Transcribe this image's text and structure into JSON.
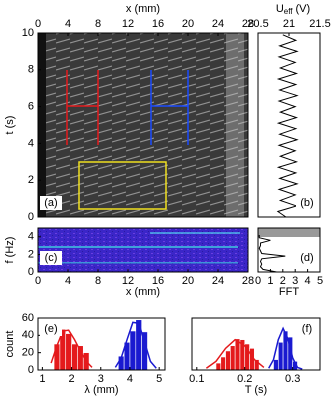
{
  "chart_data": [
    {
      "type": "image",
      "label": "(a)",
      "xlabel": "x (mm)",
      "ylabel": "t (s)",
      "xlim": [
        0,
        28
      ],
      "xticks": [
        0,
        4,
        8,
        12,
        16,
        20,
        24,
        28
      ],
      "ylim": [
        0,
        10
      ],
      "yticks": [
        0,
        2,
        4,
        6,
        8,
        10
      ]
    },
    {
      "type": "line",
      "label": "(b)",
      "xlabel": "U",
      "xlabel_sub": "eff",
      "xlabel_unit": "(V)",
      "color": "#000000",
      "xlim": [
        20.5,
        21.5
      ],
      "xticks": [
        20.5,
        21,
        21.5
      ],
      "ylim": [
        0,
        10
      ],
      "y": [
        0,
        0.3,
        0.6,
        0.9,
        1.2,
        1.5,
        1.8,
        2.1,
        2.4,
        2.7,
        3.0,
        3.3,
        3.6,
        3.9,
        4.2,
        4.5,
        4.8,
        5.1,
        5.4,
        5.7,
        6.0,
        6.3,
        6.6,
        6.9,
        7.2,
        7.5,
        7.8,
        8.1,
        8.4,
        8.7,
        9.0,
        9.3,
        9.6,
        9.9
      ],
      "values": [
        20.95,
        20.82,
        21.12,
        20.86,
        21.1,
        20.84,
        21.13,
        20.85,
        21.11,
        20.83,
        21.12,
        20.86,
        21.1,
        20.84,
        21.13,
        20.85,
        21.11,
        20.83,
        21.12,
        20.86,
        21.1,
        20.84,
        21.13,
        20.85,
        21.11,
        20.83,
        21.12,
        20.86,
        21.1,
        20.84,
        21.13,
        20.85,
        21.11,
        20.9
      ]
    },
    {
      "type": "image",
      "label": "(c)",
      "xlabel": "x (mm)",
      "ylabel": "f (Hz)",
      "xlim": [
        0,
        28
      ],
      "xticks": [
        0,
        4,
        8,
        12,
        16,
        20,
        24,
        28
      ],
      "ylim": [
        0,
        5
      ],
      "yticks": [
        0,
        2,
        4
      ]
    },
    {
      "type": "line",
      "label": "(d)",
      "xlabel": "FFT",
      "color": "#000000",
      "xlim": [
        0,
        5
      ],
      "xticks": [
        0,
        1,
        2,
        3,
        4,
        5
      ],
      "ylim": [
        0,
        5
      ],
      "y": [
        0,
        0.3,
        0.6,
        0.9,
        1.2,
        1.5,
        1.8,
        2.1,
        2.4,
        2.7,
        3.0,
        3.3,
        3.6,
        3.9,
        4.2
      ],
      "values": [
        1.5,
        0.4,
        0.2,
        0.3,
        0.2,
        0.3,
        2.2,
        0.3,
        0.2,
        0.1,
        0.2,
        0.2,
        1.0,
        0.1,
        0.1
      ]
    },
    {
      "type": "histogram",
      "label": "(e)",
      "xlabel": "λ (mm)",
      "ylabel": "count",
      "xlim": [
        0.85,
        5.2
      ],
      "xticks": [
        1,
        2,
        3,
        4,
        5
      ],
      "ylim": [
        0,
        60
      ],
      "yticks": [
        0,
        20,
        40,
        60
      ],
      "series": [
        {
          "color": "#e41a1c",
          "bins": [
            1.4,
            1.6,
            1.8,
            2.0,
            2.2,
            2.4,
            2.6
          ],
          "values": [
            30,
            47,
            42,
            30,
            28,
            20
          ],
          "fit_x": [
            1.3,
            1.5,
            1.7,
            1.9,
            2.1,
            2.3,
            2.5,
            2.7
          ],
          "fit_values": [
            8,
            28,
            45,
            46,
            35,
            22,
            10,
            3
          ]
        },
        {
          "color": "#1a1ad0",
          "bins": [
            3.6,
            3.8,
            4.0,
            4.2,
            4.4,
            4.6
          ],
          "values": [
            16,
            32,
            45,
            58,
            44
          ],
          "fit_x": [
            3.5,
            3.7,
            3.9,
            4.1,
            4.3,
            4.5,
            4.7,
            4.9
          ],
          "fit_values": [
            3,
            14,
            35,
            55,
            54,
            32,
            10,
            2
          ]
        }
      ]
    },
    {
      "type": "histogram",
      "label": "(f)",
      "xlabel": "T (s)",
      "xlim": [
        0.09,
        0.357
      ],
      "xticks": [
        0.1,
        0.2,
        0.3
      ],
      "ylim": [
        0,
        60
      ],
      "yticks": [],
      "series": [
        {
          "color": "#e41a1c",
          "bins": [
            0.14,
            0.15,
            0.16,
            0.17,
            0.18,
            0.19,
            0.2,
            0.21,
            0.22,
            0.23
          ],
          "values": [
            8,
            15,
            22,
            28,
            36,
            35,
            30,
            25,
            12
          ],
          "fit_x": [
            0.12,
            0.14,
            0.16,
            0.18,
            0.2,
            0.22,
            0.24
          ],
          "fit_values": [
            2,
            10,
            25,
            35,
            28,
            12,
            3
          ]
        },
        {
          "color": "#1a1ad0",
          "bins": [
            0.26,
            0.27,
            0.28,
            0.29,
            0.3,
            0.31
          ],
          "values": [
            12,
            32,
            45,
            38,
            10
          ],
          "fit_x": [
            0.25,
            0.26,
            0.27,
            0.28,
            0.29,
            0.3,
            0.31,
            0.32
          ],
          "fit_values": [
            2,
            12,
            35,
            48,
            36,
            14,
            3,
            1
          ]
        }
      ]
    }
  ]
}
